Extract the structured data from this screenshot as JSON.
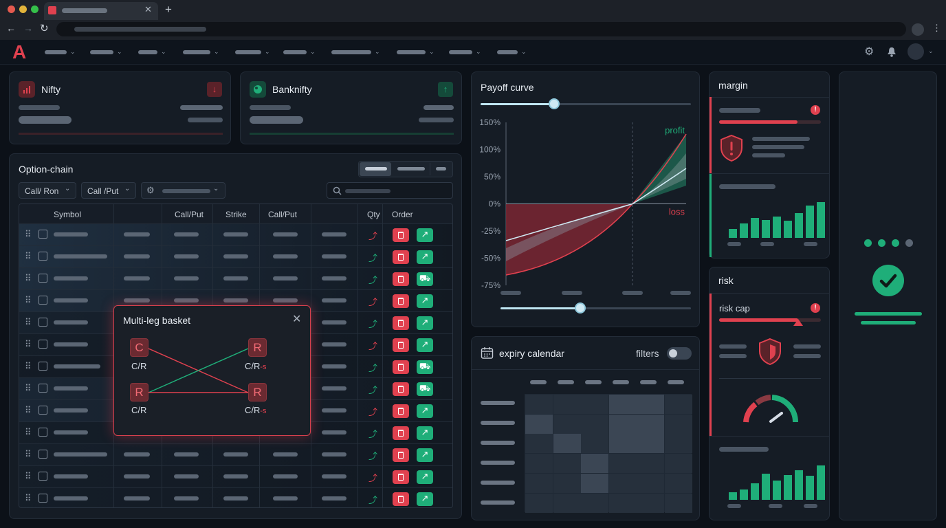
{
  "app": {
    "logo": "A",
    "brand_color": "#e0414f",
    "accent_green": "#1fae79",
    "accent_red": "#e0414f",
    "nav_items": 10
  },
  "index_cards": [
    {
      "name": "Nifty",
      "trend": "down",
      "icon": "bar-chart-icon"
    },
    {
      "name": "Banknifty",
      "trend": "up",
      "icon": "globe-icon"
    }
  ],
  "option_chain": {
    "title": "Option-chain",
    "filter_1": "Call/ Ron",
    "filter_2": "Call /Put",
    "columns": {
      "symbol": "Symbol",
      "call_put_1": "Call/Put",
      "strike": "Strike",
      "call_put_2": "Call/Put",
      "qty": "Qty",
      "order": "Order"
    },
    "row_trends": [
      "down",
      "up",
      "up",
      "down",
      "up",
      "down",
      "up",
      "up",
      "down",
      "up",
      "up",
      "down",
      "up"
    ],
    "row_actions": [
      "arrow",
      "arrow",
      "cart",
      "arrow",
      "arrow",
      "arrow",
      "cart",
      "cart",
      "arrow",
      "arrow",
      "arrow",
      "arrow",
      "arrow"
    ]
  },
  "basket": {
    "title": "Multi-leg basket",
    "leg_tl": "C",
    "leg_tr": "R",
    "leg_bl": "R",
    "leg_br": "R",
    "label_tl": "C/R",
    "label_tr": "C/R",
    "label_tr_suffix": "-s",
    "label_bl": "C/R",
    "label_br": "C/R",
    "label_br_suffix": "-s"
  },
  "payoff": {
    "title": "Payoff curve",
    "y_ticks": [
      "150%",
      "100%",
      "50%",
      "0%",
      "-25%",
      "-50%",
      "-75%"
    ],
    "profit_label": "profit",
    "loss_label": "loss",
    "top_slider_value": 0.35,
    "bottom_slider_value": 0.42
  },
  "chart_data": {
    "type": "area",
    "title": "Payoff curve",
    "y_tick_labels": [
      "150%",
      "100%",
      "50%",
      "0%",
      "-25%",
      "-50%",
      "-75%"
    ],
    "series": [
      {
        "name": "profit",
        "color": "#1fae79"
      },
      {
        "name": "loss",
        "color": "#e0414f"
      }
    ],
    "annotations": [
      "profit",
      "loss"
    ]
  },
  "calendar": {
    "title": "expiry calendar",
    "filters_label": "filters",
    "filters_on": false,
    "heat": [
      [
        1,
        1,
        1,
        3,
        3,
        1
      ],
      [
        3,
        1,
        1,
        3,
        3,
        1
      ],
      [
        1,
        3,
        1,
        3,
        3,
        1
      ],
      [
        1,
        1,
        3,
        1,
        1,
        1
      ],
      [
        1,
        1,
        3,
        1,
        1,
        1
      ],
      [
        1,
        1,
        1,
        1,
        1,
        1
      ]
    ]
  },
  "margin": {
    "title": "margin",
    "bars_top": [
      0.25,
      0.4,
      0.55,
      0.5,
      0.6,
      0.48,
      0.7,
      0.9,
      1.0
    ],
    "fill": 0.77
  },
  "risk": {
    "title": "risk",
    "label": "risk cap",
    "fill": 0.78,
    "bars": [
      0.22,
      0.3,
      0.48,
      0.75,
      0.55,
      0.72,
      0.85,
      0.7,
      1.0
    ]
  },
  "status": {
    "dots": [
      "on",
      "on",
      "on",
      "off"
    ],
    "state": "ok"
  }
}
